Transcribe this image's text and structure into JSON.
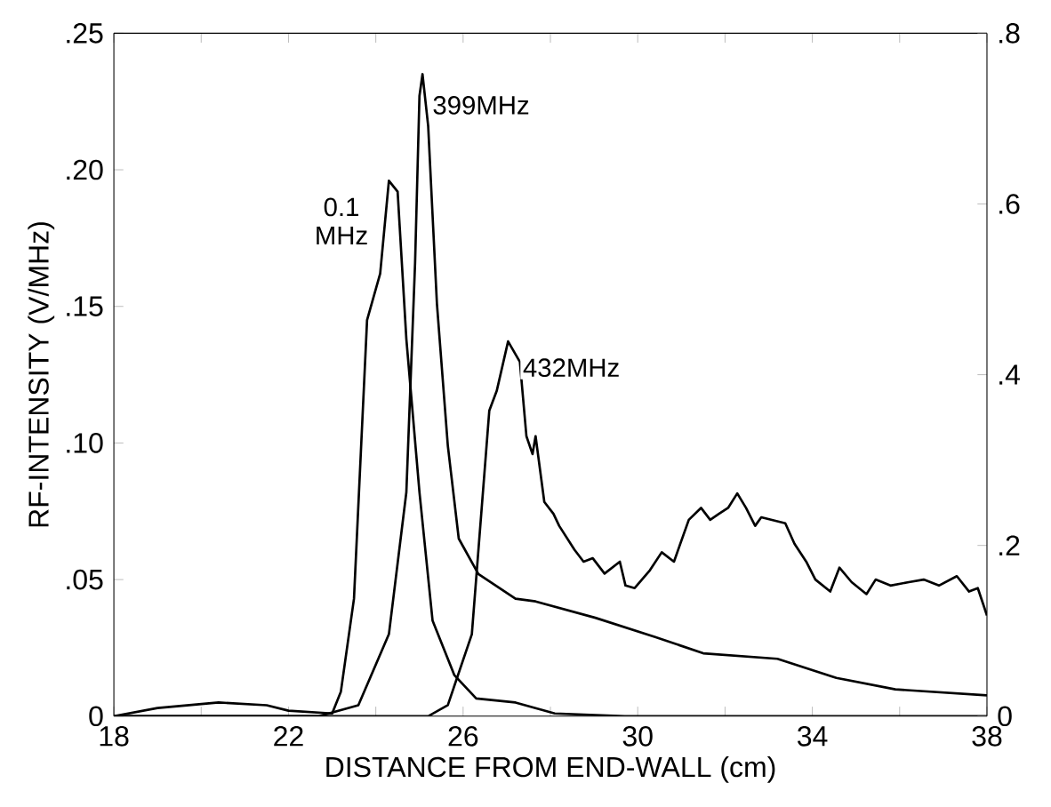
{
  "chart_data": {
    "type": "line",
    "xlabel": "DISTANCE FROM END-WALL   (cm)",
    "ylabel": "RF-INTENSITY (V/MHz)",
    "xlim": [
      18,
      38
    ],
    "xticks": [
      18,
      {
        "value": 20,
        "label": null
      },
      22,
      {
        "value": 24,
        "label": null
      },
      26,
      {
        "value": 28,
        "label": null
      },
      30,
      {
        "value": 32,
        "label": null
      },
      34,
      {
        "value": 36,
        "label": null
      },
      38
    ],
    "ylim": [
      0,
      0.25
    ],
    "yticks": [
      {
        "value": 0,
        "label": "0"
      },
      {
        "value": 0.05,
        "label": ".05"
      },
      {
        "value": 0.1,
        "label": ".10"
      },
      {
        "value": 0.15,
        "label": ".15"
      },
      {
        "value": 0.2,
        "label": ".20"
      },
      {
        "value": 0.25,
        "label": ".25"
      }
    ],
    "y2lim": [
      0,
      0.8
    ],
    "y2ticks": [
      {
        "value": 0,
        "label": "0"
      },
      {
        "value": 0.2,
        "label": ".2"
      },
      {
        "value": 0.4,
        "label": ".4"
      },
      {
        "value": 0.6,
        "label": ".6"
      },
      {
        "value": 0.8,
        "label": ".8"
      }
    ],
    "grid": false,
    "marker": "none",
    "line_style": "solid",
    "series": [
      {
        "name": "0.1 MHz",
        "color": "#000000",
        "x": [
          18,
          19,
          20.4,
          21.5,
          22,
          23,
          23.2,
          23.5,
          23.8,
          24.1,
          24.3,
          24.5,
          24.7,
          25,
          25.3,
          25.8,
          26.3,
          27.2,
          28.1,
          29.7,
          38
        ],
        "values": [
          0,
          0.003,
          0.005,
          0.004,
          0.002,
          0.001,
          0.009,
          0.043,
          0.145,
          0.162,
          0.196,
          0.192,
          0.138,
          0.082,
          0.035,
          0.015,
          0.0065,
          0.005,
          0.001,
          0,
          0
        ]
      },
      {
        "name": "399MHz",
        "color": "#000000",
        "x": [
          18,
          22.7,
          23.6,
          24.3,
          24.7,
          24.9,
          25.0,
          25.07,
          25.2,
          25.4,
          25.65,
          25.9,
          26.35,
          27.2,
          27.66,
          29.03,
          30.4,
          31.5,
          33.2,
          34.55,
          35.9,
          38
        ],
        "values": [
          0,
          0,
          0.004,
          0.03,
          0.082,
          0.166,
          0.227,
          0.235,
          0.216,
          0.151,
          0.099,
          0.065,
          0.052,
          0.043,
          0.042,
          0.036,
          0.029,
          0.023,
          0.021,
          0.014,
          0.0098,
          0.0076
        ]
      },
      {
        "name": "432MHz",
        "color": "#000000",
        "axis": "y2",
        "x": [
          18,
          25.2,
          25.65,
          26.2,
          26.6,
          26.77,
          27.03,
          27.3,
          27.45,
          27.59,
          27.66,
          27.86,
          28.07,
          28.2,
          28.55,
          28.76,
          28.97,
          29.24,
          29.59,
          29.72,
          29.93,
          30.28,
          30.55,
          30.83,
          31.17,
          31.45,
          31.66,
          31.86,
          32.07,
          32.28,
          32.48,
          32.69,
          32.83,
          33.38,
          33.59,
          33.86,
          34.07,
          34.41,
          34.62,
          34.9,
          35.24,
          35.45,
          35.79,
          36.21,
          36.55,
          36.9,
          37.31,
          37.59,
          37.79,
          38
        ],
        "values": [
          0,
          0,
          0.013,
          0.096,
          0.358,
          0.381,
          0.439,
          0.415,
          0.328,
          0.307,
          0.328,
          0.251,
          0.237,
          0.223,
          0.195,
          0.181,
          0.185,
          0.167,
          0.181,
          0.153,
          0.15,
          0.171,
          0.192,
          0.181,
          0.23,
          0.244,
          0.23,
          0.237,
          0.244,
          0.261,
          0.244,
          0.223,
          0.233,
          0.226,
          0.202,
          0.181,
          0.16,
          0.146,
          0.174,
          0.157,
          0.143,
          0.16,
          0.153,
          0.157,
          0.16,
          0.153,
          0.164,
          0.146,
          0.15,
          0.118
        ]
      }
    ]
  }
}
